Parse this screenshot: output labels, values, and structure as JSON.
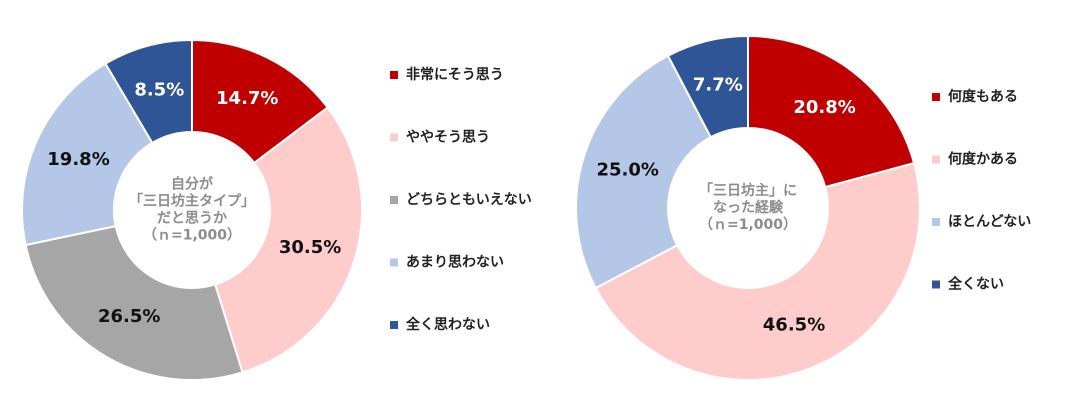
{
  "chart_data": [
    {
      "type": "donut",
      "center_label": [
        "自分が",
        "「三日坊主タイプ」",
        "だと思うか",
        "（ｎ=1,000）"
      ],
      "categories": [
        "非常にそう思う",
        "ややそう思う",
        "どちらともいえない",
        "あまり思わない",
        "全く思わない"
      ],
      "values": [
        14.7,
        30.5,
        26.5,
        19.8,
        8.5
      ],
      "value_labels": [
        "14.7%",
        "30.5%",
        "26.5%",
        "19.8%",
        "8.5%"
      ],
      "colors": [
        "#c00000",
        "#ffcccc",
        "#a6a6a6",
        "#b4c7e7",
        "#2f5597"
      ]
    },
    {
      "type": "donut",
      "center_label": [
        "「三日坊主」に",
        "なった経験",
        "（ｎ=1,000）"
      ],
      "categories": [
        "何度もある",
        "何度かある",
        "ほとんどない",
        "全くない"
      ],
      "values": [
        20.8,
        46.5,
        25.0,
        7.7
      ],
      "value_labels": [
        "20.8%",
        "46.5%",
        "25.0%",
        "7.7%"
      ],
      "colors": [
        "#c00000",
        "#ffcccc",
        "#b4c7e7",
        "#2f5597"
      ]
    }
  ]
}
